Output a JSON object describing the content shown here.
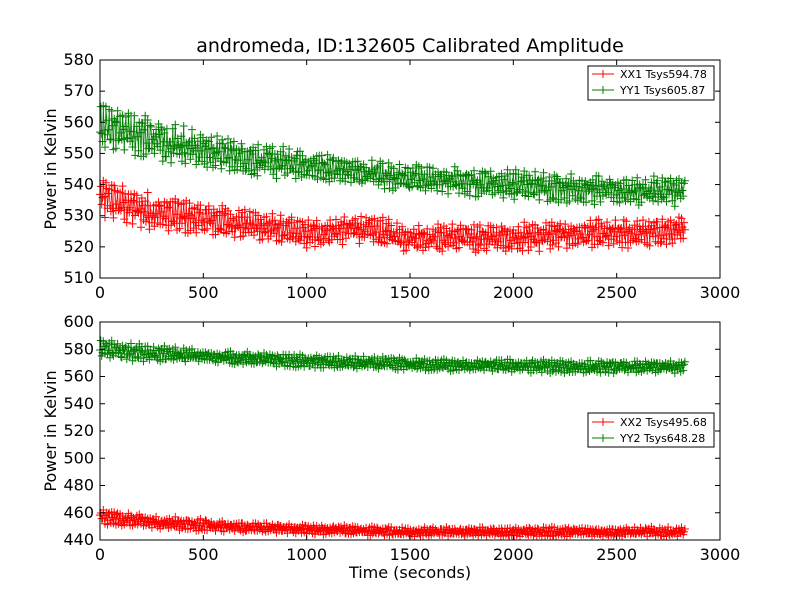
{
  "chart_data": [
    {
      "type": "scatter",
      "title": "andromeda, ID:132605 Calibrated Amplitude",
      "xlabel": "",
      "ylabel": "Power in Kelvin",
      "xlim": [
        0,
        3000
      ],
      "ylim": [
        510,
        580
      ],
      "xticks": [
        "0",
        "500",
        "1000",
        "1500",
        "2000",
        "2500",
        "3000"
      ],
      "yticks": [
        "510",
        "520",
        "530",
        "540",
        "550",
        "560",
        "570",
        "580"
      ],
      "legend_position": "top-right",
      "grid": false,
      "x_range_data": [
        0,
        2830
      ],
      "series": [
        {
          "name": "XX1 Tsys594.78",
          "color": "#ff0000",
          "marker": "plus",
          "x": [
            0,
            250,
            500,
            750,
            1000,
            1250,
            1500,
            1750,
            2000,
            2250,
            2500,
            2800
          ],
          "y": [
            536,
            531,
            529,
            527,
            524,
            526,
            523,
            523,
            523,
            524,
            524,
            525
          ],
          "spread": [
            6,
            5,
            5,
            4,
            4,
            4,
            4,
            4,
            4,
            4,
            4,
            4
          ]
        },
        {
          "name": "YY1 Tsys605.87",
          "color": "#007f00",
          "marker": "plus",
          "x": [
            0,
            250,
            500,
            750,
            1000,
            1250,
            1500,
            1750,
            2000,
            2250,
            2500,
            2800
          ],
          "y": [
            560,
            555,
            551,
            548,
            546,
            544,
            542,
            541,
            540,
            539,
            538,
            538
          ],
          "spread": [
            7,
            6,
            5,
            5,
            4,
            4,
            4,
            4,
            4,
            4,
            4,
            4
          ]
        }
      ]
    },
    {
      "type": "scatter",
      "title": "",
      "xlabel": "Time (seconds)",
      "ylabel": "Power in Kelvin",
      "xlim": [
        0,
        3000
      ],
      "ylim": [
        440,
        600
      ],
      "xticks": [
        "0",
        "500",
        "1000",
        "1500",
        "2000",
        "2500",
        "3000"
      ],
      "yticks": [
        "440",
        "460",
        "480",
        "500",
        "520",
        "540",
        "560",
        "580",
        "600"
      ],
      "legend_position": "center-right",
      "grid": false,
      "x_range_data": [
        0,
        2830
      ],
      "series": [
        {
          "name": "XX2 Tsys495.68",
          "color": "#ff0000",
          "marker": "plus",
          "x": [
            0,
            250,
            500,
            750,
            1000,
            1250,
            1500,
            1750,
            2000,
            2250,
            2500,
            2800
          ],
          "y": [
            457,
            453,
            451,
            449,
            448,
            447,
            446,
            446,
            446,
            446,
            446,
            446
          ],
          "spread": [
            5,
            4,
            4,
            3,
            3,
            3,
            3,
            3,
            3,
            3,
            3,
            3
          ]
        },
        {
          "name": "YY2 Tsys648.28",
          "color": "#007f00",
          "marker": "plus",
          "x": [
            0,
            250,
            500,
            750,
            1000,
            1250,
            1500,
            1750,
            2000,
            2250,
            2500,
            2800
          ],
          "y": [
            580,
            577,
            575,
            573,
            571,
            570,
            569,
            568,
            568,
            567,
            567,
            567
          ],
          "spread": [
            6,
            5,
            4,
            4,
            4,
            4,
            4,
            4,
            4,
            4,
            4,
            4
          ]
        }
      ]
    }
  ]
}
